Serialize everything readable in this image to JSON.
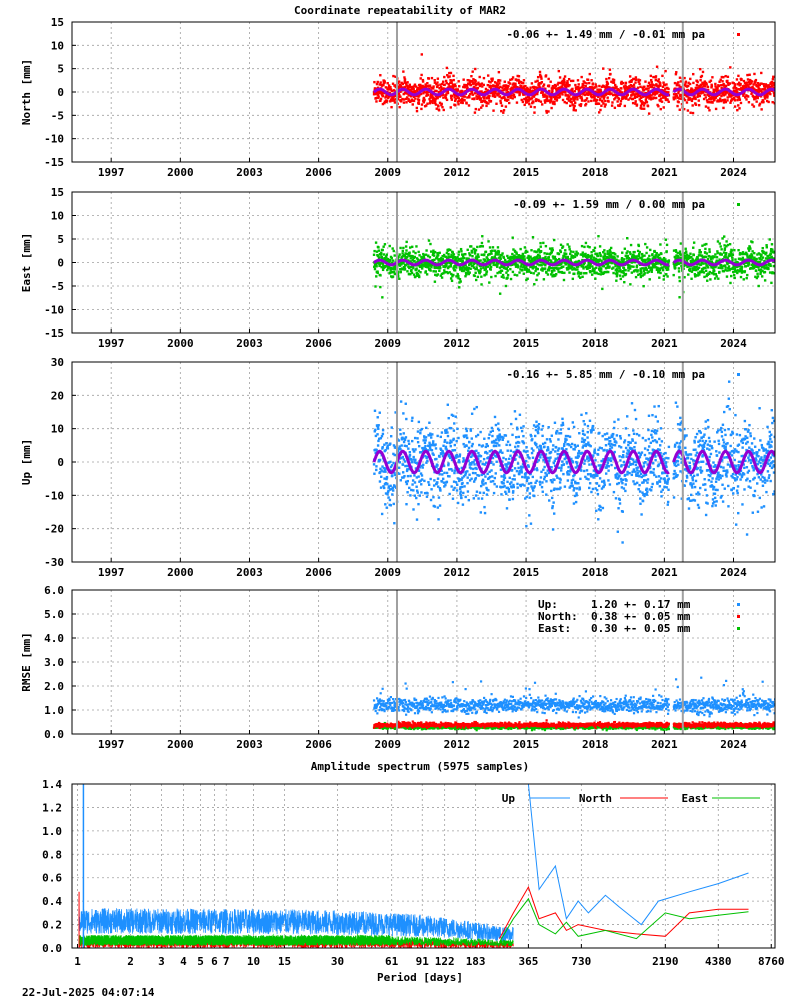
{
  "chart_data": [
    {
      "type": "scatter",
      "title": "Coordinate repeatability of MAR2",
      "ylabel": "North [mm]",
      "ylim": [
        -15,
        15
      ],
      "yticks": [
        -15,
        -10,
        -5,
        0,
        5,
        10,
        15
      ],
      "xlim": [
        1995.3,
        2025.8
      ],
      "xticks": [
        1997,
        2000,
        2003,
        2006,
        2009,
        2012,
        2015,
        2018,
        2021,
        2024
      ],
      "grid": true,
      "legend": "-0.06 +- 1.49 mm / -0.01 mm pa",
      "legend_placement": "top-right",
      "color": "#ff0000",
      "model_color": "#9400d3",
      "data_span": [
        2008.4,
        2025.8
      ],
      "gap": [
        2021.2,
        2021.4
      ],
      "equipment_changes": [
        2009.4,
        2021.8
      ],
      "scatter_sd": 1.49,
      "seasonal_amplitude": 0.6
    },
    {
      "type": "scatter",
      "ylabel": "East [mm]",
      "ylim": [
        -15,
        15
      ],
      "yticks": [
        -15,
        -10,
        -5,
        0,
        5,
        10,
        15
      ],
      "xlim": [
        1995.3,
        2025.8
      ],
      "xticks": [
        1997,
        2000,
        2003,
        2006,
        2009,
        2012,
        2015,
        2018,
        2021,
        2024
      ],
      "grid": true,
      "legend": "-0.09 +- 1.59 mm /  0.00 mm pa",
      "legend_placement": "top-right",
      "color": "#00c000",
      "model_color": "#9400d3",
      "data_span": [
        2008.4,
        2025.8
      ],
      "gap": [
        2021.2,
        2021.4
      ],
      "equipment_changes": [
        2009.4,
        2021.8
      ],
      "scatter_sd": 1.59,
      "seasonal_amplitude": 0.5
    },
    {
      "type": "scatter",
      "ylabel": "Up [mm]",
      "ylim": [
        -30,
        30
      ],
      "yticks": [
        -30,
        -20,
        -10,
        0,
        10,
        20,
        30
      ],
      "xlim": [
        1995.3,
        2025.8
      ],
      "xticks": [
        1997,
        2000,
        2003,
        2006,
        2009,
        2012,
        2015,
        2018,
        2021,
        2024
      ],
      "grid": true,
      "legend": "-0.16 +- 5.85 mm / -0.10 mm pa",
      "legend_placement": "top-right",
      "color": "#1e90ff",
      "model_color": "#9400d3",
      "data_span": [
        2008.4,
        2025.8
      ],
      "gap": [
        2021.2,
        2021.4
      ],
      "equipment_changes": [
        2009.4,
        2021.8
      ],
      "scatter_sd": 5.85,
      "seasonal_amplitude": 3.2
    },
    {
      "type": "scatter",
      "ylabel": "RMSE [mm]",
      "ylim": [
        0.0,
        6.0
      ],
      "yticks": [
        "0.0",
        "1.0",
        "2.0",
        "3.0",
        "4.0",
        "5.0",
        "6.0"
      ],
      "xlim": [
        1995.3,
        2025.8
      ],
      "xticks": [
        1997,
        2000,
        2003,
        2006,
        2009,
        2012,
        2015,
        2018,
        2021,
        2024
      ],
      "grid": true,
      "legend_placement": "top-right",
      "equipment_changes": [
        2009.4,
        2021.8
      ],
      "data_span": [
        2008.4,
        2025.8
      ],
      "gap": [
        2021.2,
        2021.4
      ],
      "series": [
        {
          "name": "Up:     1.20 +- 0.17 mm",
          "color": "#1e90ff",
          "mean": 1.2,
          "sd": 0.17
        },
        {
          "name": "North:  0.38 +- 0.05 mm",
          "color": "#ff0000",
          "mean": 0.38,
          "sd": 0.05
        },
        {
          "name": "East:   0.30 +- 0.05 mm",
          "color": "#00c000",
          "mean": 0.3,
          "sd": 0.05
        }
      ]
    },
    {
      "type": "line",
      "title": "Amplitude spectrum (5975 samples)",
      "xlabel": "Period [days]",
      "xscale": "log",
      "xlim": [
        1,
        8760
      ],
      "xticks": [
        1,
        2,
        3,
        4,
        5,
        6,
        7,
        10,
        15,
        30,
        61,
        91,
        122,
        183,
        365,
        730,
        2190,
        4380,
        8760
      ],
      "ylim": [
        0.0,
        1.4
      ],
      "yticks": [
        "0.0",
        "0.2",
        "0.4",
        "0.6",
        "0.8",
        "1.0",
        "1.2",
        "1.4"
      ],
      "grid": true,
      "legend_placement": "top-right",
      "series": [
        {
          "name": "Up",
          "color": "#1e90ff",
          "x": [
            365,
            420,
            520,
            600,
            700,
            800,
            1000,
            1200,
            1600,
            2000,
            3000,
            4380,
            6500
          ],
          "y": [
            1.4,
            0.5,
            0.7,
            0.25,
            0.4,
            0.3,
            0.45,
            0.35,
            0.2,
            0.4,
            0.48,
            0.55,
            0.64
          ]
        },
        {
          "name": "North",
          "color": "#ff0000",
          "x": [
            250,
            300,
            365,
            420,
            520,
            600,
            700,
            1000,
            1500,
            2190,
            3000,
            4380,
            6500
          ],
          "y": [
            0.08,
            0.3,
            0.52,
            0.25,
            0.3,
            0.15,
            0.2,
            0.15,
            0.12,
            0.1,
            0.3,
            0.33,
            0.33
          ]
        },
        {
          "name": "East",
          "color": "#00c000",
          "x": [
            250,
            300,
            365,
            420,
            520,
            600,
            700,
            1000,
            1500,
            2190,
            3000,
            4380,
            6500
          ],
          "y": [
            0.05,
            0.25,
            0.42,
            0.2,
            0.12,
            0.22,
            0.1,
            0.15,
            0.08,
            0.3,
            0.25,
            0.28,
            0.31
          ]
        }
      ]
    }
  ],
  "footer": {
    "timestamp": "22-Jul-2025 04:07:14"
  }
}
